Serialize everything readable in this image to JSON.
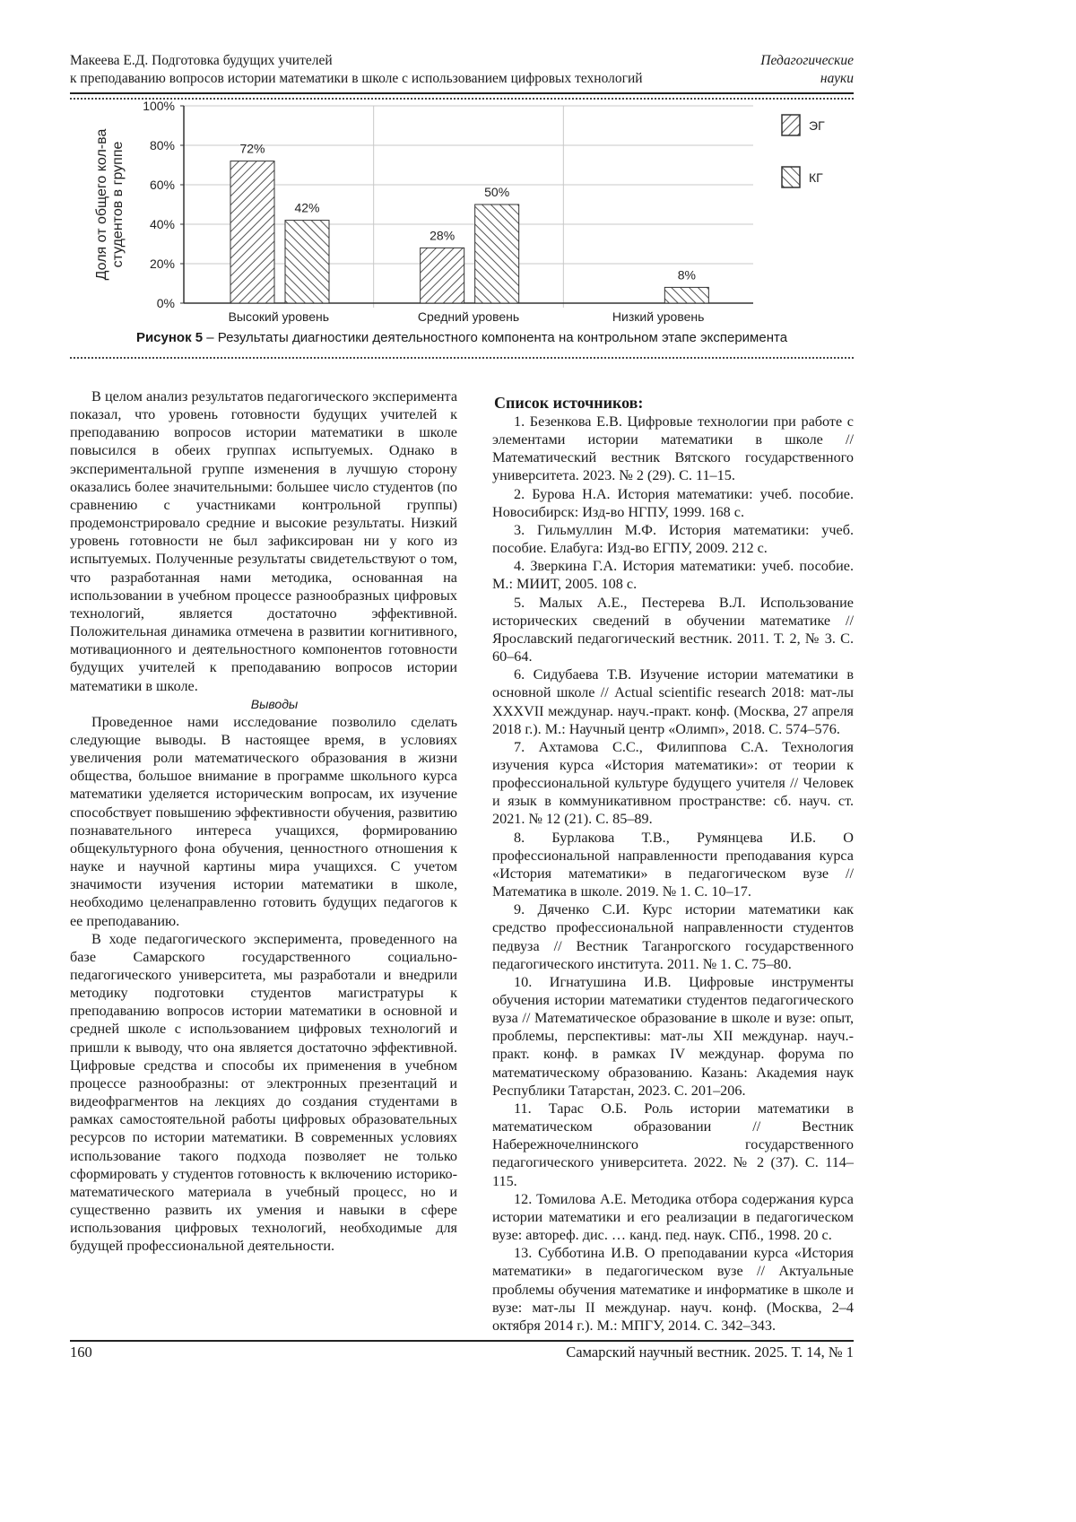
{
  "header": {
    "left_line1": "Макеева Е.Д. Подготовка будущих учителей",
    "left_line2": "к преподаванию вопросов истории математики в школе с использованием цифровых технологий",
    "right_line1": "Педагогические",
    "right_line2": "науки"
  },
  "chart_data": {
    "type": "bar",
    "categories": [
      "Высокий уровень",
      "Средний уровень",
      "Низкий уровень"
    ],
    "series": [
      {
        "name": "ЭГ",
        "values": [
          72,
          28,
          0
        ],
        "labels": [
          "72%",
          "28%",
          ""
        ],
        "pattern": "hatch-forward"
      },
      {
        "name": "КГ",
        "values": [
          42,
          50,
          8
        ],
        "labels": [
          "42%",
          "50%",
          "8%"
        ],
        "pattern": "hatch-backward"
      }
    ],
    "ylabel_line1": "Доля от общего кол-ва",
    "ylabel_line2": "студентов в группе",
    "yticks": [
      "0%",
      "20%",
      "40%",
      "60%",
      "80%",
      "100%"
    ],
    "ylim": [
      0,
      100
    ],
    "grid": true,
    "legend_position": "right"
  },
  "caption": {
    "label": "Рисунок 5",
    "text": " – Результаты диагностики деятельностного компонента на контрольном этапе эксперимента"
  },
  "left_column": {
    "p1": "В целом анализ результатов педагогического эксперимента показал, что уровень готовности будущих учителей к преподаванию вопросов истории математики в школе повысился в обеих группах испытуемых. Однако в экспериментальной группе изменения в лучшую сторону оказались более значительными: большее число студентов (по сравнению с участниками контрольной группы) продемонстрировало средние и высокие результаты. Низкий уровень готовности не был зафиксирован ни у кого из испытуемых. Полученные результаты свидетельствуют о том, что разработанная нами методика, основанная на использовании в учебном процессе разнообразных цифровых технологий, является достаточно эффективной. Положительная динамика отмечена в развитии когнитивного, мотивационного и деятельностного компонентов готовности будущих учителей к преподаванию вопросов истории математики в школе.",
    "subheading": "Выводы",
    "p2": "Проведенное нами исследование позволило сделать следующие выводы. В настоящее время, в условиях увеличения роли математического образования в жизни общества, большое внимание в программе школьного курса математики уделяется историческим вопросам, их изучение способствует повышению эффективности обучения, развитию познавательного интереса учащихся, формированию общекультурного фона обучения, ценностного отношения к науке и научной картины мира учащихся. С учетом значимости изучения истории математики в школе, необходимо целенаправленно готовить будущих педагогов к ее преподаванию.",
    "p3": "В ходе педагогического эксперимента, проведенного на базе Самарского государственного социально-педагогического университета, мы разработали и внедрили методику подготовки студентов магистратуры к преподаванию вопросов истории математики в основной и средней школе с использованием цифровых технологий и пришли к выводу, что она является достаточно эффективной. Цифровые средства и способы их применения в учебном процессе разнообразны: от электронных презентаций и видеофрагментов на лекциях до создания студентами в рамках самостоятельной работы цифровых образовательных ресурсов по истории математики. В современных условиях использование такого подхода позволяет не только сформировать у студентов готовность к включению историко-математического материала в учебный процесс, но и существенно развить их умения и навыки в сфере использования цифровых технологий, необходимые для будущей профессиональной деятельности."
  },
  "references": {
    "heading": "Список источников:",
    "items": [
      "1. Безенкова Е.В. Цифровые технологии при работе с элементами истории математики в школе // Математический вестник Вятского государственного университета. 2023. № 2 (29). С. 11–15.",
      "2. Бурова Н.А. История математики: учеб. пособие. Новосибирск: Изд-во НГПУ, 1999. 168 с.",
      "3. Гильмуллин М.Ф. История математики: учеб. пособие. Елабуга: Изд-во ЕГПУ, 2009. 212 с.",
      "4. Зверкина Г.А. История математики: учеб. пособие. М.: МИИТ, 2005. 108 с.",
      "5. Малых А.Е., Пестерева В.Л. Использование исторических сведений в обучении математике // Ярославский педагогический вестник. 2011. Т. 2, № 3. С. 60–64.",
      "6. Сидубаева Т.В. Изучение истории математики в основной школе // Actual scientific research 2018: мат-лы XXXVII междунар. науч.-практ. конф. (Москва, 27 апреля 2018 г.). М.: Научный центр «Олимп», 2018. С. 574–576.",
      "7. Ахтамова С.С., Филиппова С.А. Технология изучения курса «История математики»: от теории к профессиональной культуре будущего учителя // Человек и язык в коммуникативном пространстве: сб. науч. ст. 2021. № 12 (21). С. 85–89.",
      "8. Бурлакова Т.В., Румянцева И.Б. О профессиональной направленности преподавания курса «История математики» в педагогическом вузе // Математика в школе. 2019. № 1. С. 10–17.",
      "9. Дяченко С.И. Курс истории математики как средство профессиональной направленности студентов педвуза // Вестник Таганрогского государственного педагогического института. 2011. № 1. С. 75–80.",
      "10. Игнатушина И.В. Цифровые инструменты обучения истории математики студентов педагогического вуза // Математическое образование в школе и вузе: опыт, проблемы, перспективы: мат-лы XII междунар. науч.-практ. конф. в рамках IV междунар. форума по математическому образованию. Казань: Академия наук Республики Татарстан, 2023. С. 201–206.",
      "11. Тарас О.Б. Роль истории математики в математическом образовании // Вестник Набережночелнинского государственного педагогического университета. 2022. № 2 (37). С. 114–115.",
      "12. Томилова А.Е. Методика отбора содержания курса истории математики и его реализации в педагогическом вузе: автореф. дис. … канд. пед. наук. СПб., 1998. 20 с.",
      "13. Субботина И.В. О преподавании курса «История математики» в педагогическом вузе // Актуальные проблемы обучения математике и информатике в школе и вузе: мат-лы II междунар. науч. конф. (Москва, 2–4 октября 2014 г.). М.: МПГУ, 2014. С. 342–343."
    ]
  },
  "footer": {
    "page_number": "160",
    "journal": "Самарский научный вестник. 2025. Т. 14, № 1"
  }
}
